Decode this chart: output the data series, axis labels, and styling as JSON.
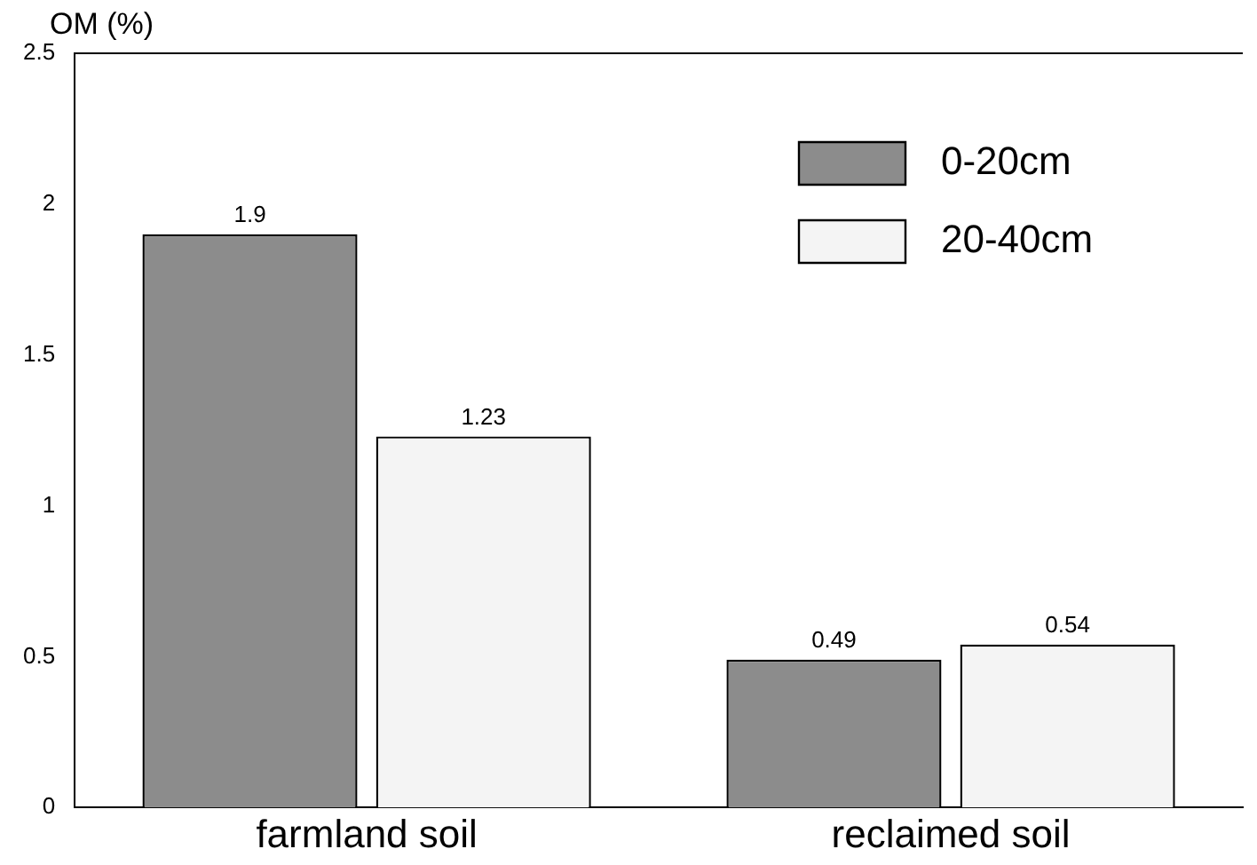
{
  "chart_data": {
    "type": "bar",
    "ylabel": "OM (%)",
    "categories": [
      "farmland soil",
      "reclaimed soil"
    ],
    "series": [
      {
        "name": "0-20cm",
        "color": "#8c8c8c",
        "values": [
          1.9,
          0.49
        ]
      },
      {
        "name": "20-40cm",
        "color": "#f4f4f4",
        "values": [
          1.23,
          0.54
        ]
      }
    ],
    "ylim": [
      0,
      2.5
    ],
    "yticks": [
      0,
      0.5,
      1,
      1.5,
      2,
      2.5
    ],
    "grid": false,
    "legend": "top right",
    "data_labels": true
  }
}
